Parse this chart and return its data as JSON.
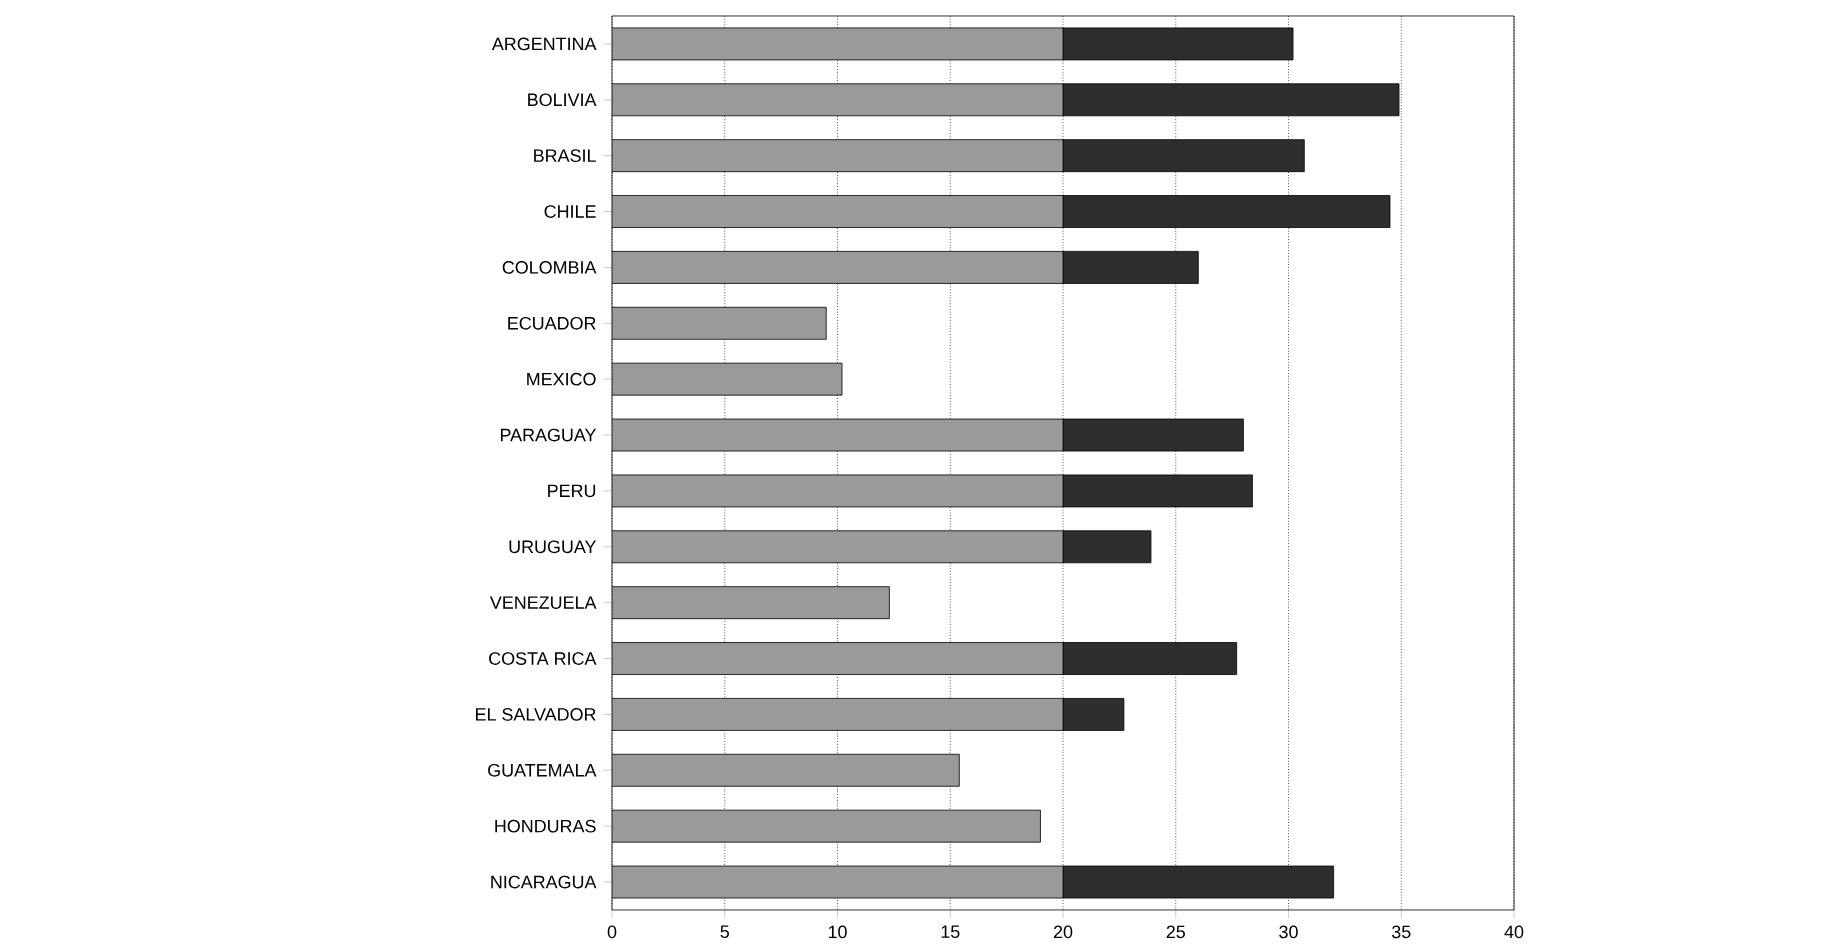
{
  "chart_data": {
    "type": "bar",
    "orientation": "horizontal",
    "stacked": true,
    "categories": [
      "ARGENTINA",
      "BOLIVIA",
      "BRASIL",
      "CHILE",
      "COLOMBIA",
      "ECUADOR",
      "MEXICO",
      "PARAGUAY",
      "PERU",
      "URUGUAY",
      "VENEZUELA",
      "COSTA RICA",
      "EL SALVADOR",
      "GUATEMALA",
      "HONDURAS",
      "NICARAGUA"
    ],
    "series": [
      {
        "color": "#9a9a9a",
        "values": [
          20,
          20,
          20,
          20,
          20,
          9.5,
          10.2,
          20,
          20,
          20,
          12.3,
          20,
          20,
          15.4,
          19.0,
          20
        ]
      },
      {
        "color": "#2e2e2e",
        "values": [
          10.2,
          14.9,
          10.7,
          14.5,
          6.0,
          null,
          null,
          8.0,
          8.4,
          3.9,
          null,
          7.7,
          2.7,
          null,
          null,
          12.0
        ]
      }
    ],
    "xlim": [
      0,
      40
    ],
    "xticks": [
      0,
      5,
      10,
      15,
      20,
      25,
      30,
      35,
      40
    ],
    "grid": "x"
  }
}
